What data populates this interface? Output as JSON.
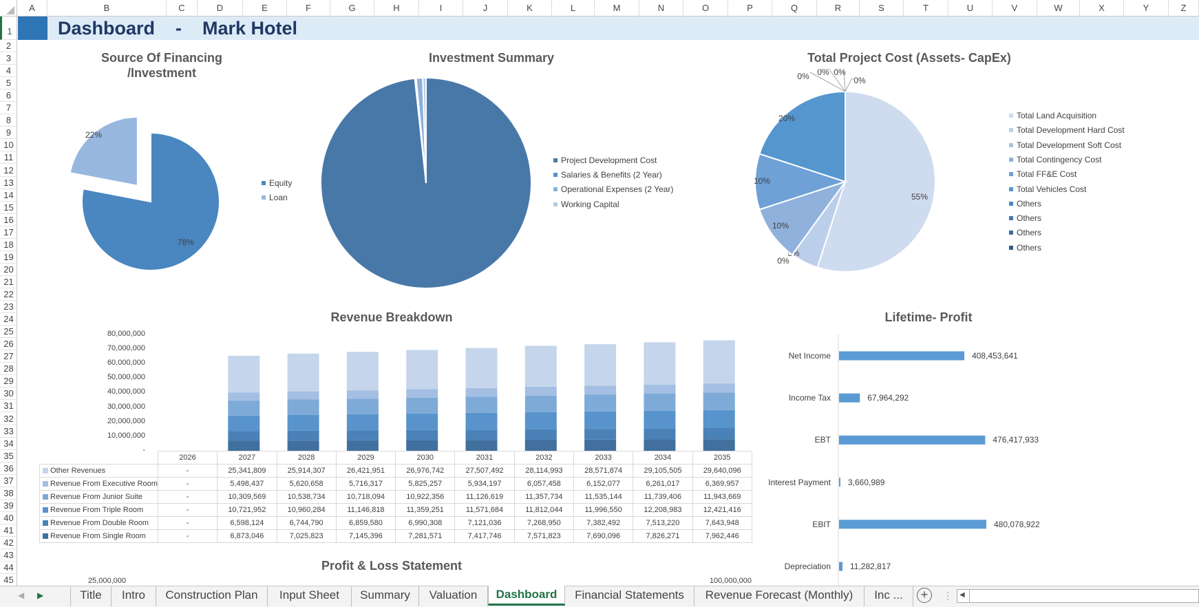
{
  "sheet": {
    "columns": [
      "A",
      "B",
      "C",
      "D",
      "E",
      "F",
      "G",
      "H",
      "I",
      "J",
      "K",
      "L",
      "M",
      "N",
      "O",
      "P",
      "Q",
      "R",
      "S",
      "T",
      "U",
      "V",
      "W",
      "X",
      "Y",
      "Z"
    ],
    "title": "Dashboard    -    Mark Hotel",
    "header_dark_color": "#2e75b6",
    "header_light_color": "#ddebf7",
    "rows_visible": 45
  },
  "financing_chart": {
    "title_line1": "Source Of Financing",
    "title_line2": "/Investment",
    "type": "pie",
    "slices": [
      {
        "label": "Equity",
        "value": 78,
        "data_label": "78%",
        "color": "#4a86bf"
      },
      {
        "label": "Loan",
        "value": 22,
        "data_label": "22%",
        "color": "#97b7df",
        "exploded": true
      }
    ]
  },
  "investment_chart": {
    "title": "Investment Summary",
    "type": "pie",
    "slices": [
      {
        "label": "Project Development Cost",
        "value": 98.3,
        "color": "#4878a8"
      },
      {
        "label": "Salaries & Benefits (2 Year)",
        "value": 0.2,
        "color": "#5b8fc8"
      },
      {
        "label": "Operational Expenses (2 Year)",
        "value": 1.0,
        "color": "#8db0dc"
      },
      {
        "label": "Working Capital",
        "value": 0.5,
        "color": "#b6cbe8"
      }
    ]
  },
  "capex_chart": {
    "title": "Total Project Cost (Assets- CapEx)",
    "type": "pie",
    "slices": [
      {
        "label": "Total Land Acquisition",
        "value": 55,
        "data_label": "55%",
        "color": "#cfdcef"
      },
      {
        "label": "Total Development Hard Cost",
        "value": 5,
        "data_label": "5%",
        "color": "#bccfea"
      },
      {
        "label": "Total Development Soft Cost",
        "value": 0,
        "data_label": "0%",
        "color": "#a9c2e5"
      },
      {
        "label": "Total Contingency Cost",
        "value": 10,
        "data_label": "10%",
        "color": "#8fb1dc"
      },
      {
        "label": "Total FF&E Cost",
        "value": 10,
        "data_label": "10%",
        "color": "#6fa0d6"
      },
      {
        "label": "Total Vehicles Cost",
        "value": 20,
        "data_label": "20%",
        "color": "#5596cf"
      },
      {
        "label": "Others",
        "value": 0,
        "data_label": "0%",
        "color": "#4c88c2"
      },
      {
        "label": "Others",
        "value": 0,
        "data_label": "0%",
        "color": "#4379b0"
      },
      {
        "label": "Others",
        "value": 0,
        "data_label": "0%",
        "color": "#3e6c9c"
      },
      {
        "label": "Others",
        "value": 0,
        "data_label": "0%",
        "color": "#355d88"
      }
    ]
  },
  "chart_data": [
    {
      "type": "bar",
      "stacked": true,
      "title": "Revenue Breakdown",
      "categories": [
        "2026",
        "2027",
        "2028",
        "2029",
        "2030",
        "2031",
        "2032",
        "2033",
        "2034",
        "2035"
      ],
      "yticks": [
        "80,000,000",
        "70,000,000",
        "60,000,000",
        "50,000,000",
        "40,000,000",
        "30,000,000",
        "20,000,000",
        "10,000,000",
        "-"
      ],
      "ylim": [
        0,
        80000000
      ],
      "series": [
        {
          "name": "Other Revenues",
          "color": "#c5d5eb",
          "display": [
            "-",
            "25,341,809",
            "25,914,307",
            "26,421,951",
            "26,976,742",
            "27,507,492",
            "28,114,993",
            "28,571,874",
            "29,105,505",
            "29,640,096"
          ],
          "values": [
            0,
            25341809,
            25914307,
            26421951,
            26976742,
            27507492,
            28114993,
            28571874,
            29105505,
            29640096
          ]
        },
        {
          "name": "Revenue From Executive Room",
          "color": "#a4bfe3",
          "display": [
            "-",
            "5,498,437",
            "5,620,658",
            "5,716,317",
            "5,825,257",
            "5,934,197",
            "6,057,458",
            "6,152,077",
            "6,261,017",
            "6,369,957"
          ],
          "values": [
            0,
            5498437,
            5620658,
            5716317,
            5825257,
            5934197,
            6057458,
            6152077,
            6261017,
            6369957
          ]
        },
        {
          "name": "Revenue From Junior Suite",
          "color": "#7eaad8",
          "display": [
            "-",
            "10,309,569",
            "10,538,734",
            "10,718,094",
            "10,922,356",
            "11,126,619",
            "11,357,734",
            "11,535,144",
            "11,739,406",
            "11,943,669"
          ],
          "values": [
            0,
            10309569,
            10538734,
            10718094,
            10922356,
            11126619,
            11357734,
            11535144,
            11739406,
            11943669
          ]
        },
        {
          "name": "Revenue From Triple Room",
          "color": "#5894cb",
          "display": [
            "-",
            "10,721,952",
            "10,960,284",
            "11,146,818",
            "11,359,251",
            "11,571,684",
            "11,812,044",
            "11,996,550",
            "12,208,983",
            "12,421,416"
          ],
          "values": [
            0,
            10721952,
            10960284,
            11146818,
            11359251,
            11571684,
            11812044,
            11996550,
            12208983,
            12421416
          ]
        },
        {
          "name": "Revenue From Double Room",
          "color": "#4a82b8",
          "display": [
            "-",
            "6,598,124",
            "6,744,790",
            "6,859,580",
            "6,990,308",
            "7,121,036",
            "7,268,950",
            "7,382,492",
            "7,513,220",
            "7,643,948"
          ],
          "values": [
            0,
            6598124,
            6744790,
            6859580,
            6990308,
            7121036,
            7268950,
            7382492,
            7513220,
            7643948
          ]
        },
        {
          "name": "Revenue From Single Room",
          "color": "#41709e",
          "display": [
            "-",
            "6,873,046",
            "7,025,823",
            "7,145,396",
            "7,281,571",
            "7,417,746",
            "7,571,823",
            "7,690,096",
            "7,826,271",
            "7,962,446"
          ],
          "values": [
            0,
            6873046,
            7025823,
            7145396,
            7281571,
            7417746,
            7571823,
            7690096,
            7826271,
            7962446
          ]
        }
      ]
    },
    {
      "type": "bar",
      "orientation": "horizontal",
      "title": "Lifetime- Profit",
      "color": "#5b9bd5",
      "categories": [
        "Net Income",
        "Income Tax",
        "EBT",
        "Interest Payment",
        "EBIT",
        "Depreciation"
      ],
      "values": [
        408453641,
        67964292,
        476417933,
        3660989,
        480078922,
        11282817
      ],
      "data_labels": [
        "408,453,641",
        "67,964,292",
        "476,417,933",
        "3,660,989",
        "480,078,922",
        "11,282,817"
      ]
    }
  ],
  "pl_chart": {
    "title": "Profit & Loss Statement",
    "left_axis_top": "25,000,000",
    "right_axis_top": "100,000,000"
  },
  "tabs": {
    "items": [
      "Title",
      "Intro",
      "Construction Plan",
      "Input Sheet",
      "Summary",
      "Valuation",
      "Dashboard",
      "Financial Statements",
      "Revenue Forecast (Monthly)",
      "Inc ..."
    ],
    "active": "Dashboard"
  }
}
